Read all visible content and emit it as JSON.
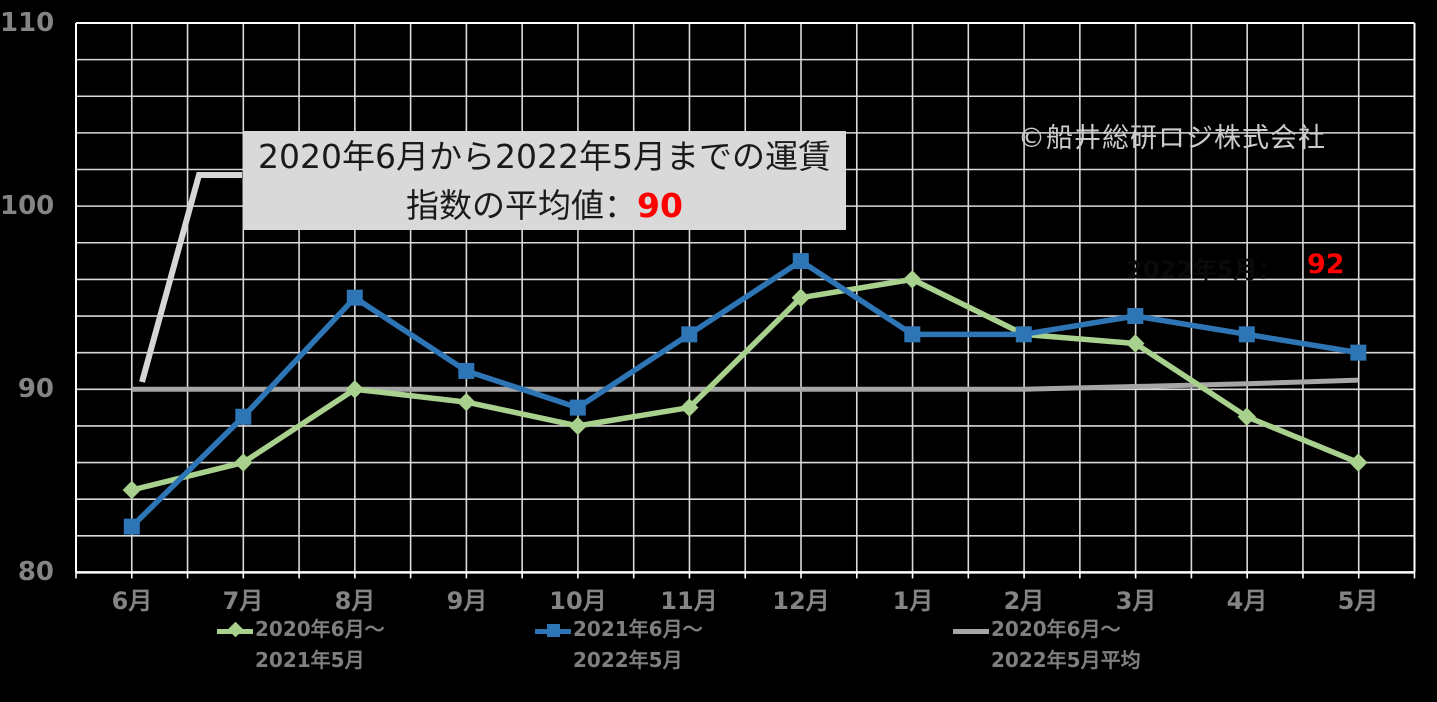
{
  "watermark": "©船井総研ロジ株式会社",
  "textbox": {
    "text": "2020年6月から2022年5月までの運賃指数の平均値：",
    "value": "90"
  },
  "annotation": {
    "obscured_label": "2022年5月：",
    "value": "92"
  },
  "chart_data": {
    "type": "line",
    "title": "",
    "xlabel": "",
    "ylabel": "",
    "categories": [
      "6月",
      "7月",
      "8月",
      "9月",
      "10月",
      "11月",
      "12月",
      "1月",
      "2月",
      "3月",
      "4月",
      "5月"
    ],
    "series": [
      {
        "name": "2020年6月～2021年5月",
        "legend_line1": "2020年6月～",
        "legend_line2": "2021年5月",
        "color": "#a9d18e",
        "marker": "diamond",
        "values": [
          84.5,
          86,
          90,
          89.3,
          88,
          89,
          95,
          96,
          93,
          92.5,
          88.5,
          86
        ]
      },
      {
        "name": "2021年6月～2022年5月",
        "legend_line1": "2021年6月～",
        "legend_line2": "2022年5月",
        "color": "#2e75b6",
        "marker": "square",
        "values": [
          82.5,
          88.5,
          95,
          91,
          89,
          93,
          97,
          93,
          93,
          94,
          93,
          92
        ]
      },
      {
        "name": "2020年6月～2022年5月平均",
        "legend_line1": "2020年6月～",
        "legend_line2": "2022年5月平均",
        "color": "#a6a6a6",
        "marker": "none",
        "values": [
          90,
          90,
          90,
          90,
          90,
          90,
          90,
          90,
          90,
          90.15,
          90.3,
          90.5
        ]
      }
    ],
    "ylim": [
      80,
      110
    ],
    "ytick_step_minor": 2,
    "ytick_labels": [
      "110",
      "100",
      "90",
      "80"
    ],
    "ytick_values": [
      110,
      100,
      90,
      80
    ],
    "grid": true,
    "legend_position": "bottom"
  },
  "colors": {
    "background": "#000000",
    "gridline": "#d9d9d9",
    "plot_border": "#ffffff",
    "axis_text": "#848484",
    "legend_text": "#7f7f7f",
    "textbox_bg": "#d9d9d9",
    "textbox_text": "#1a1a1a",
    "accent_red": "#ff0000",
    "watermark_text": "#cbcbcb",
    "callout_line": "#d6d6d6"
  }
}
